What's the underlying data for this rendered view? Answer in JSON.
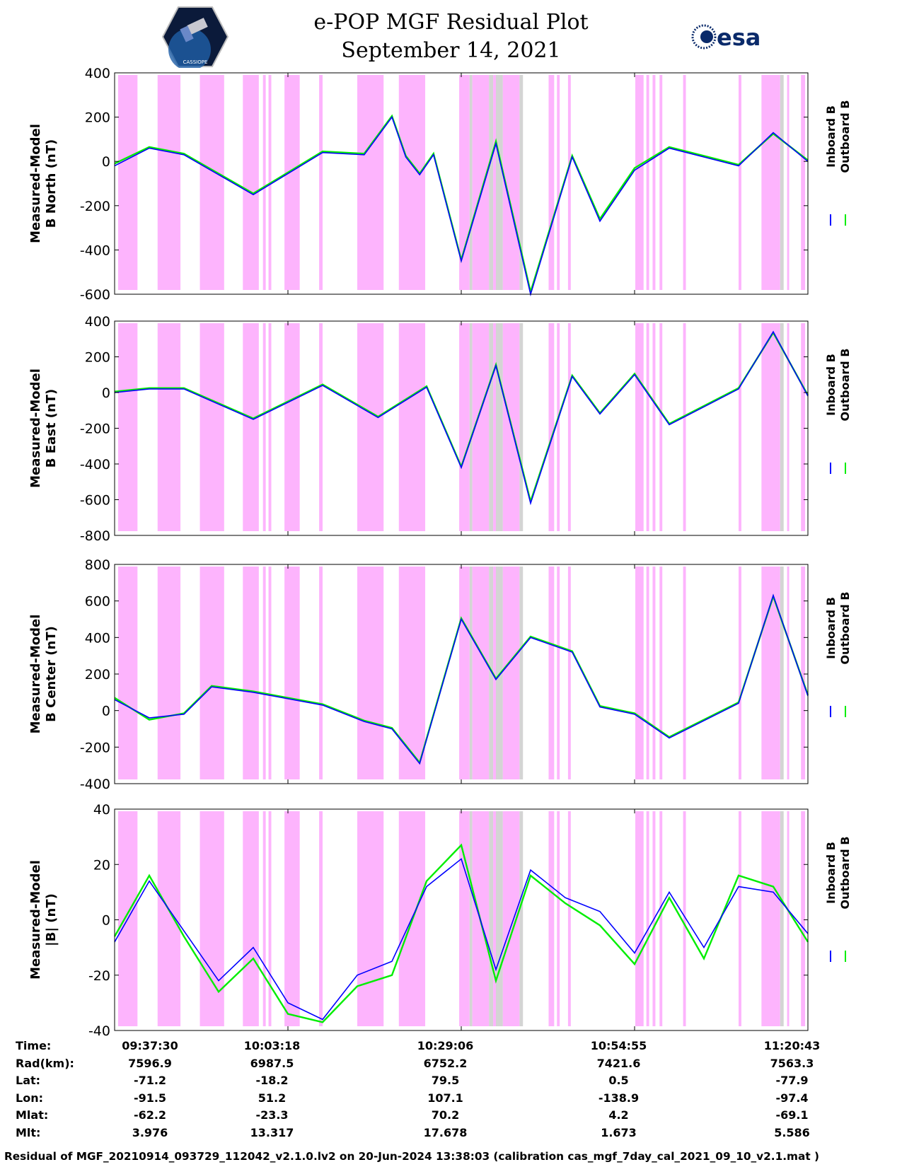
{
  "header": {
    "title": "e-POP MGF Residual Plot",
    "subtitle": "September 14, 2021",
    "left_logo_text": "CASSIOPE",
    "right_logo_text": "esa"
  },
  "colors": {
    "inboard": "#0000ff",
    "outboard": "#00ee00",
    "shade_magenta": "#fdb4fd",
    "shade_gray": "#d4d4d4"
  },
  "legend": {
    "inboard": "Inboard B",
    "outboard": "Outboard B"
  },
  "chart_data": [
    {
      "type": "line",
      "ylabel": [
        "Measured-Model",
        "B North (nT)"
      ],
      "ylim": [
        -600,
        400
      ],
      "yticks": [
        "400",
        "200",
        "0",
        "-200",
        "-400",
        "-600"
      ],
      "x": [
        0,
        5,
        10,
        20,
        30,
        36,
        40,
        42,
        44,
        46,
        50,
        55,
        60,
        66,
        70,
        75,
        80,
        90,
        95,
        100
      ],
      "series": [
        {
          "name": "Inboard B",
          "values": [
            -20,
            60,
            30,
            -150,
            40,
            30,
            200,
            20,
            -60,
            30,
            -450,
            80,
            -600,
            20,
            -270,
            -40,
            60,
            -20,
            130,
            0
          ]
        },
        {
          "name": "Outboard B",
          "values": [
            -10,
            65,
            35,
            -145,
            45,
            35,
            205,
            25,
            -55,
            35,
            -445,
            90,
            -590,
            25,
            -260,
            -30,
            65,
            -15,
            125,
            5
          ]
        }
      ]
    },
    {
      "type": "line",
      "ylabel": [
        "Measured-Model",
        "B East (nT)"
      ],
      "ylim": [
        -800,
        400
      ],
      "yticks": [
        "400",
        "200",
        "0",
        "-200",
        "-400",
        "-600",
        "-800"
      ],
      "x": [
        0,
        5,
        10,
        20,
        30,
        38,
        45,
        50,
        55,
        60,
        66,
        70,
        75,
        80,
        90,
        95,
        100
      ],
      "series": [
        {
          "name": "Inboard B",
          "values": [
            0,
            20,
            20,
            -150,
            40,
            -140,
            30,
            -420,
            150,
            -620,
            90,
            -120,
            100,
            -180,
            20,
            340,
            -20
          ]
        },
        {
          "name": "Outboard B",
          "values": [
            5,
            25,
            25,
            -145,
            45,
            -135,
            35,
            -415,
            155,
            -610,
            95,
            -115,
            105,
            -175,
            25,
            335,
            -15
          ]
        }
      ]
    },
    {
      "type": "line",
      "ylabel": [
        "Measured-Model",
        "B Center (nT)"
      ],
      "ylim": [
        -400,
        800
      ],
      "yticks": [
        "800",
        "600",
        "400",
        "200",
        "0",
        "-200",
        "-400"
      ],
      "x": [
        0,
        5,
        10,
        14,
        20,
        30,
        36,
        40,
        44,
        50,
        55,
        60,
        66,
        70,
        75,
        80,
        90,
        95,
        100
      ],
      "series": [
        {
          "name": "Inboard B",
          "values": [
            60,
            -40,
            -20,
            130,
            100,
            30,
            -60,
            -100,
            -290,
            500,
            170,
            400,
            320,
            20,
            -20,
            -150,
            40,
            630,
            80
          ]
        },
        {
          "name": "Outboard B",
          "values": [
            70,
            -50,
            -15,
            135,
            105,
            35,
            -55,
            -95,
            -285,
            505,
            175,
            405,
            325,
            25,
            -15,
            -145,
            45,
            625,
            85
          ]
        }
      ]
    },
    {
      "type": "line",
      "ylabel": [
        "Measured-Model",
        "|B| (nT)"
      ],
      "ylim": [
        -40,
        40
      ],
      "yticks": [
        "40",
        "20",
        "0",
        "-20",
        "-40"
      ],
      "x": [
        0,
        5,
        10,
        15,
        20,
        25,
        30,
        35,
        40,
        45,
        50,
        55,
        60,
        65,
        70,
        75,
        80,
        85,
        90,
        95,
        100
      ],
      "series": [
        {
          "name": "Inboard B",
          "values": [
            -8,
            14,
            -4,
            -22,
            -10,
            -30,
            -36,
            -20,
            -15,
            12,
            22,
            -18,
            18,
            8,
            3,
            -12,
            10,
            -10,
            12,
            10,
            -5
          ]
        },
        {
          "name": "Outboard B",
          "values": [
            -6,
            16,
            -6,
            -26,
            -14,
            -34,
            -37,
            -24,
            -20,
            14,
            27,
            -22,
            16,
            6,
            -2,
            -16,
            8,
            -14,
            16,
            12,
            -8
          ]
        }
      ]
    }
  ],
  "shaded_intervals": [
    {
      "start": 0.5,
      "end": 3.3,
      "kind": "magenta"
    },
    {
      "start": 6.2,
      "end": 9.5,
      "kind": "magenta"
    },
    {
      "start": 12.3,
      "end": 15.8,
      "kind": "magenta"
    },
    {
      "start": 18.5,
      "end": 20.8,
      "kind": "magenta"
    },
    {
      "start": 21.4,
      "end": 21.8,
      "kind": "magenta"
    },
    {
      "start": 22.2,
      "end": 22.6,
      "kind": "magenta"
    },
    {
      "start": 24.5,
      "end": 26.7,
      "kind": "magenta"
    },
    {
      "start": 29.5,
      "end": 30.0,
      "kind": "magenta"
    },
    {
      "start": 35.0,
      "end": 38.8,
      "kind": "magenta"
    },
    {
      "start": 41.0,
      "end": 44.8,
      "kind": "magenta"
    },
    {
      "start": 49.7,
      "end": 51.2,
      "kind": "magenta"
    },
    {
      "start": 51.2,
      "end": 51.6,
      "kind": "gray"
    },
    {
      "start": 51.6,
      "end": 54.0,
      "kind": "magenta"
    },
    {
      "start": 54.0,
      "end": 54.6,
      "kind": "gray"
    },
    {
      "start": 54.6,
      "end": 55.0,
      "kind": "magenta"
    },
    {
      "start": 55.0,
      "end": 56.0,
      "kind": "gray"
    },
    {
      "start": 56.0,
      "end": 58.4,
      "kind": "magenta"
    },
    {
      "start": 58.4,
      "end": 58.9,
      "kind": "gray"
    },
    {
      "start": 62.6,
      "end": 63.4,
      "kind": "magenta"
    },
    {
      "start": 63.8,
      "end": 64.2,
      "kind": "magenta"
    },
    {
      "start": 65.4,
      "end": 65.8,
      "kind": "magenta"
    },
    {
      "start": 75.1,
      "end": 76.3,
      "kind": "magenta"
    },
    {
      "start": 76.7,
      "end": 77.1,
      "kind": "magenta"
    },
    {
      "start": 77.6,
      "end": 78.0,
      "kind": "magenta"
    },
    {
      "start": 78.6,
      "end": 79.0,
      "kind": "magenta"
    },
    {
      "start": 82.0,
      "end": 82.4,
      "kind": "magenta"
    },
    {
      "start": 90.0,
      "end": 90.4,
      "kind": "magenta"
    },
    {
      "start": 93.3,
      "end": 96.0,
      "kind": "magenta"
    },
    {
      "start": 96.0,
      "end": 96.5,
      "kind": "gray"
    },
    {
      "start": 97.0,
      "end": 97.3,
      "kind": "magenta"
    },
    {
      "start": 99.0,
      "end": 99.6,
      "kind": "magenta"
    }
  ],
  "info_table": {
    "labels": [
      "Time:",
      "Rad(km):",
      "Lat:",
      "Lon:",
      "Mlat:",
      "Mlt:"
    ],
    "columns": [
      [
        "09:37:30",
        "7596.9",
        "-71.2",
        "-91.5",
        "-62.2",
        "3.976"
      ],
      [
        "10:03:18",
        "6987.5",
        "-18.2",
        "51.2",
        "-23.3",
        "13.317"
      ],
      [
        "10:29:06",
        "6752.2",
        "79.5",
        "107.1",
        "70.2",
        "17.678"
      ],
      [
        "10:54:55",
        "7421.6",
        "0.5",
        "-138.9",
        "4.2",
        "1.673"
      ],
      [
        "11:20:43",
        "7563.3",
        "-77.9",
        "-97.4",
        "-69.1",
        "5.586"
      ]
    ]
  },
  "footer": "Residual of MGF_20210914_093729_112042_v2.1.0.lv2 on 20-Jun-2024 13:38:03 (calibration cas_mgf_7day_cal_2021_09_10_v2.1.mat )"
}
